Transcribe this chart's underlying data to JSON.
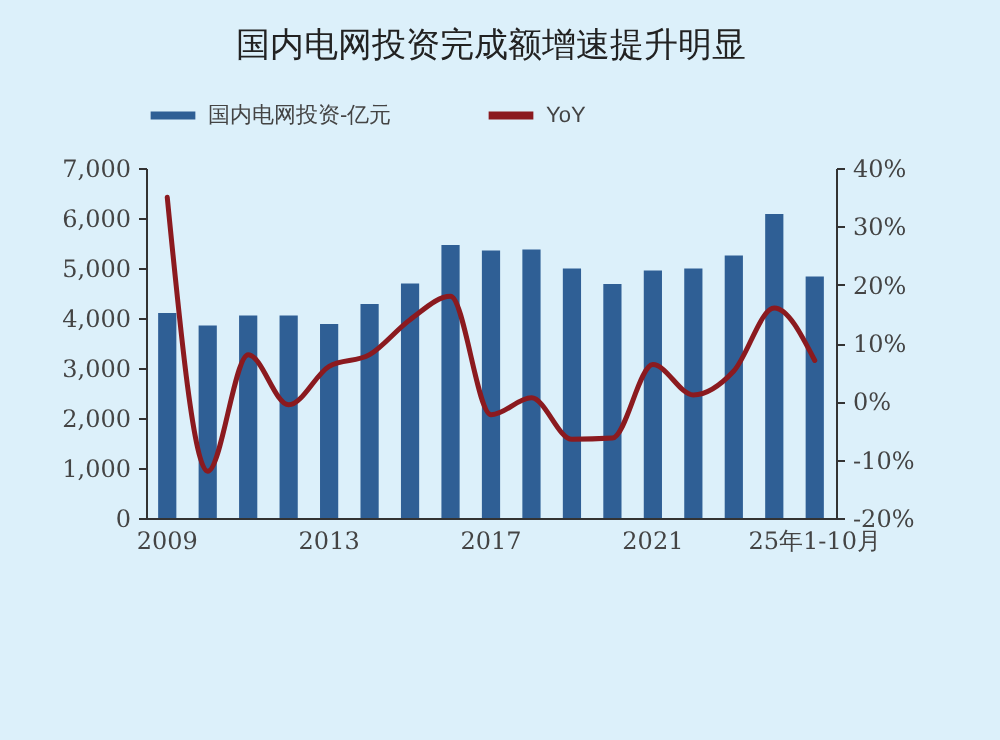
{
  "chart_data": {
    "type": "bar",
    "title": "国内电网投资完成额增速提升明显",
    "categories": [
      "2009",
      null,
      null,
      null,
      "2013",
      null,
      null,
      null,
      "2017",
      null,
      null,
      null,
      "2021",
      null,
      null,
      null,
      "25年1-10月"
    ],
    "series": [
      {
        "name": "国内电网投资-亿元",
        "color": "#2f5f95",
        "values": [
          4100,
          3850,
          4050,
          4050,
          3880,
          4280,
          4690,
          5460,
          5350,
          5370,
          4990,
          4680,
          4950,
          4990,
          5250,
          6080,
          4830
        ]
      },
      {
        "name": "YoY",
        "type": "line",
        "axis": "y2",
        "color": "#8b1a1f",
        "values": [
          35,
          -12,
          8,
          -0.6,
          6,
          8,
          14,
          18,
          -2.3,
          0.6,
          -6.5,
          -6.3,
          6.3,
          1.1,
          5.2,
          16,
          7
        ]
      }
    ],
    "ylim": [
      0,
      7000
    ],
    "yticks": [
      0,
      {
        "value": 1000,
        "label": "1,000"
      },
      {
        "value": 2000,
        "label": "2,000"
      },
      {
        "value": 3000,
        "label": "3,000"
      },
      {
        "value": 4000,
        "label": "4,000"
      },
      {
        "value": 5000,
        "label": "5,000"
      },
      {
        "value": 6000,
        "label": "6,000"
      },
      {
        "value": 7000,
        "label": "7,000"
      }
    ],
    "y2lim": [
      -20,
      40
    ],
    "y2ticks": [
      {
        "value": -20,
        "label": "-20%"
      },
      {
        "value": -10,
        "label": "-10%"
      },
      {
        "value": 0,
        "label": "0%"
      },
      {
        "value": 10,
        "label": "10%"
      },
      {
        "value": 20,
        "label": "20%"
      },
      {
        "value": 30,
        "label": "30%"
      },
      {
        "value": 40,
        "label": "40%"
      }
    ],
    "legend": "top"
  }
}
